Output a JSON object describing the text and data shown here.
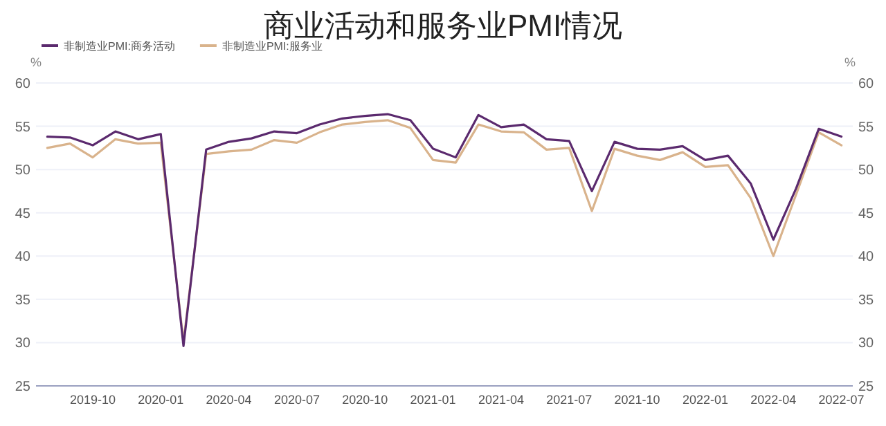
{
  "chart_data": {
    "type": "line",
    "title": "商业活动和服务业PMI情况",
    "categories": [
      null,
      null,
      "2019-10",
      null,
      null,
      "2020-01",
      null,
      null,
      "2020-04",
      null,
      null,
      "2020-07",
      null,
      null,
      "2020-10",
      null,
      null,
      "2021-01",
      null,
      null,
      "2021-04",
      null,
      null,
      "2021-07",
      null,
      null,
      "2021-10",
      null,
      null,
      "2022-01",
      null,
      null,
      "2022-04",
      null,
      null,
      "2022-07"
    ],
    "series": [
      {
        "name": "非制造业PMI:商务活动",
        "color": "#5b2a6e",
        "values": [
          53.8,
          53.7,
          52.8,
          54.4,
          53.5,
          54.1,
          29.6,
          52.3,
          53.2,
          53.6,
          54.4,
          54.2,
          55.2,
          55.9,
          56.2,
          56.4,
          55.7,
          52.4,
          51.4,
          56.3,
          54.9,
          55.2,
          53.5,
          53.3,
          47.5,
          53.2,
          52.4,
          52.3,
          52.7,
          51.1,
          51.6,
          48.4,
          41.9,
          47.8,
          54.7,
          53.8
        ]
      },
      {
        "name": "非制造业PMI:服务业",
        "color": "#d9b38c",
        "values": [
          52.5,
          53.0,
          51.4,
          53.5,
          53.0,
          53.1,
          30.1,
          51.8,
          52.1,
          52.3,
          53.4,
          53.1,
          54.3,
          55.2,
          55.5,
          55.7,
          54.8,
          51.1,
          50.8,
          55.2,
          54.4,
          54.3,
          52.3,
          52.5,
          45.2,
          52.4,
          51.6,
          51.1,
          52.0,
          50.3,
          50.5,
          46.7,
          40.0,
          47.1,
          54.3,
          52.8
        ]
      }
    ],
    "ylabel": "%",
    "y2label": "%",
    "ylim": [
      25,
      60
    ],
    "yticks": [
      25,
      30,
      35,
      40,
      45,
      50,
      55,
      60
    ],
    "y2lim": [
      25,
      60
    ],
    "y2ticks": [
      25,
      30,
      35,
      40,
      45,
      50,
      55,
      60
    ],
    "grid": "y",
    "legend": "top left"
  }
}
